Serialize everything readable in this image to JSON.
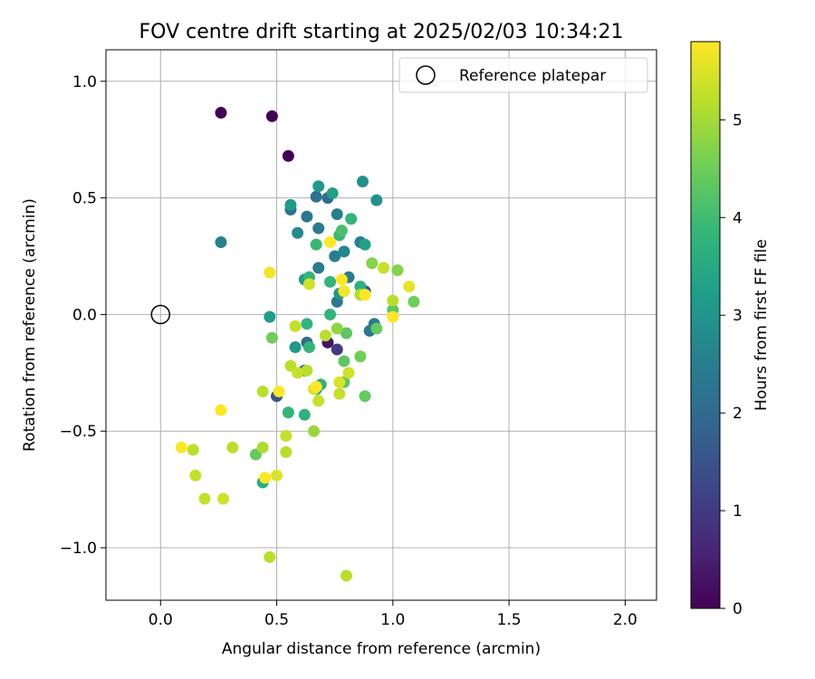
{
  "chart_data": {
    "type": "scatter",
    "title": "FOV centre drift starting at 2025/02/03 10:34:21",
    "xlabel": "Angular distance from reference (arcmin)",
    "ylabel": "Rotation from reference (arcmin)",
    "xlim": [
      -0.235,
      2.135
    ],
    "ylim": [
      -1.225,
      1.135
    ],
    "x_ticks": [
      0.0,
      0.5,
      1.0,
      1.5,
      2.0
    ],
    "x_tick_labels": [
      "0.0",
      "0.5",
      "1.0",
      "1.5",
      "2.0"
    ],
    "y_ticks": [
      -1.0,
      -0.5,
      0.0,
      0.5,
      1.0
    ],
    "y_tick_labels": [
      "−1.0",
      "−0.5",
      "0.0",
      "0.5",
      "1.0"
    ],
    "grid": true,
    "legend": {
      "position": "top-right",
      "entries": [
        "Reference platepar"
      ]
    },
    "reference": {
      "x": 0.0,
      "y": 0.0
    },
    "colorbar": {
      "label": "Hours from first FF file",
      "range": [
        0,
        5.8
      ],
      "ticks": [
        0,
        1,
        2,
        3,
        4,
        5
      ],
      "tick_labels": [
        "0",
        "1",
        "2",
        "3",
        "4",
        "5"
      ],
      "colormap": "viridis",
      "colors": [
        "#440154",
        "#482878",
        "#3e4989",
        "#31688e",
        "#26828e",
        "#1f9e89",
        "#35b779",
        "#6ece58",
        "#b5de2b",
        "#fde725"
      ]
    },
    "points": [
      {
        "x": 0.26,
        "y": 0.865,
        "h": 0.0
      },
      {
        "x": 0.48,
        "y": 0.85,
        "h": 0.0
      },
      {
        "x": 0.55,
        "y": 0.68,
        "h": 0.0
      },
      {
        "x": 0.72,
        "y": -0.12,
        "h": 0.3
      },
      {
        "x": 0.76,
        "y": -0.15,
        "h": 1.0
      },
      {
        "x": 0.5,
        "y": -0.35,
        "h": 1.5
      },
      {
        "x": 0.62,
        "y": -0.24,
        "h": 1.6
      },
      {
        "x": 0.63,
        "y": -0.12,
        "h": 2.0
      },
      {
        "x": 0.88,
        "y": 0.1,
        "h": 1.5
      },
      {
        "x": 0.72,
        "y": 0.5,
        "h": 2.0
      },
      {
        "x": 0.67,
        "y": 0.505,
        "h": 2.2
      },
      {
        "x": 0.56,
        "y": 0.45,
        "h": 2.2
      },
      {
        "x": 0.63,
        "y": 0.42,
        "h": 2.3
      },
      {
        "x": 0.76,
        "y": 0.43,
        "h": 2.5
      },
      {
        "x": 0.68,
        "y": 0.37,
        "h": 2.4
      },
      {
        "x": 0.59,
        "y": 0.35,
        "h": 2.8
      },
      {
        "x": 0.26,
        "y": 0.31,
        "h": 2.6
      },
      {
        "x": 0.86,
        "y": 0.31,
        "h": 2.5
      },
      {
        "x": 0.79,
        "y": 0.27,
        "h": 2.7
      },
      {
        "x": 0.75,
        "y": 0.25,
        "h": 2.5
      },
      {
        "x": 0.68,
        "y": 0.2,
        "h": 2.4
      },
      {
        "x": 0.81,
        "y": 0.16,
        "h": 2.4
      },
      {
        "x": 0.76,
        "y": 0.055,
        "h": 2.3
      },
      {
        "x": 0.9,
        "y": -0.07,
        "h": 2.3
      },
      {
        "x": 0.92,
        "y": -0.04,
        "h": 2.4
      },
      {
        "x": 0.87,
        "y": 0.57,
        "h": 2.9
      },
      {
        "x": 0.93,
        "y": 0.49,
        "h": 2.9
      },
      {
        "x": 0.68,
        "y": 0.55,
        "h": 3.1
      },
      {
        "x": 0.74,
        "y": 0.52,
        "h": 3.3
      },
      {
        "x": 0.56,
        "y": 0.47,
        "h": 3.2
      },
      {
        "x": 0.88,
        "y": 0.3,
        "h": 3.3
      },
      {
        "x": 0.62,
        "y": 0.15,
        "h": 3.2
      },
      {
        "x": 0.77,
        "y": 0.09,
        "h": 3.1
      },
      {
        "x": 0.47,
        "y": -0.01,
        "h": 3.2
      },
      {
        "x": 0.58,
        "y": -0.14,
        "h": 3.1
      },
      {
        "x": 0.67,
        "y": -0.32,
        "h": 3.2
      },
      {
        "x": 0.86,
        "y": 0.12,
        "h": 3.7
      },
      {
        "x": 0.77,
        "y": 0.34,
        "h": 3.9
      },
      {
        "x": 0.82,
        "y": 0.41,
        "h": 3.8
      },
      {
        "x": 0.78,
        "y": 0.36,
        "h": 4.1
      },
      {
        "x": 0.67,
        "y": 0.3,
        "h": 3.9
      },
      {
        "x": 0.64,
        "y": 0.16,
        "h": 3.8
      },
      {
        "x": 0.73,
        "y": 0.14,
        "h": 3.8
      },
      {
        "x": 0.73,
        "y": 0.0,
        "h": 3.8
      },
      {
        "x": 0.63,
        "y": -0.04,
        "h": 3.8
      },
      {
        "x": 0.64,
        "y": -0.14,
        "h": 3.8
      },
      {
        "x": 0.69,
        "y": -0.3,
        "h": 3.8
      },
      {
        "x": 0.62,
        "y": -0.43,
        "h": 3.7
      },
      {
        "x": 0.55,
        "y": -0.42,
        "h": 3.8
      },
      {
        "x": 0.44,
        "y": -0.72,
        "h": 3.6
      },
      {
        "x": 0.79,
        "y": -0.2,
        "h": 4.3
      },
      {
        "x": 0.79,
        "y": -0.29,
        "h": 4.3
      },
      {
        "x": 0.8,
        "y": -0.08,
        "h": 4.3
      },
      {
        "x": 0.88,
        "y": -0.35,
        "h": 4.4
      },
      {
        "x": 0.86,
        "y": -0.18,
        "h": 4.5
      },
      {
        "x": 0.93,
        "y": -0.06,
        "h": 4.4
      },
      {
        "x": 1.0,
        "y": 0.02,
        "h": 4.3
      },
      {
        "x": 1.09,
        "y": 0.055,
        "h": 4.5
      },
      {
        "x": 1.02,
        "y": 0.19,
        "h": 4.7
      },
      {
        "x": 0.91,
        "y": 0.22,
        "h": 4.7
      },
      {
        "x": 0.48,
        "y": -0.1,
        "h": 4.5
      },
      {
        "x": 0.76,
        "y": -0.06,
        "h": 4.8
      },
      {
        "x": 0.41,
        "y": -0.6,
        "h": 4.4
      },
      {
        "x": 0.66,
        "y": -0.5,
        "h": 4.9
      },
      {
        "x": 0.96,
        "y": 0.2,
        "h": 5.3
      },
      {
        "x": 1.0,
        "y": 0.06,
        "h": 5.2
      },
      {
        "x": 0.86,
        "y": 0.085,
        "h": 5.1
      },
      {
        "x": 0.64,
        "y": 0.13,
        "h": 5.4
      },
      {
        "x": 0.58,
        "y": -0.05,
        "h": 5.3
      },
      {
        "x": 0.71,
        "y": -0.09,
        "h": 5.2
      },
      {
        "x": 0.56,
        "y": -0.22,
        "h": 5.2
      },
      {
        "x": 0.59,
        "y": -0.25,
        "h": 5.3
      },
      {
        "x": 0.63,
        "y": -0.24,
        "h": 5.2
      },
      {
        "x": 0.81,
        "y": -0.25,
        "h": 5.4
      },
      {
        "x": 0.77,
        "y": -0.29,
        "h": 5.5
      },
      {
        "x": 0.77,
        "y": -0.34,
        "h": 5.3
      },
      {
        "x": 0.66,
        "y": -0.32,
        "h": 5.5
      },
      {
        "x": 0.68,
        "y": -0.37,
        "h": 5.3
      },
      {
        "x": 0.44,
        "y": -0.33,
        "h": 5.2
      },
      {
        "x": 0.54,
        "y": -0.52,
        "h": 5.3
      },
      {
        "x": 0.54,
        "y": -0.59,
        "h": 5.2
      },
      {
        "x": 0.44,
        "y": -0.57,
        "h": 5.1
      },
      {
        "x": 0.31,
        "y": -0.57,
        "h": 5.2
      },
      {
        "x": 0.14,
        "y": -0.58,
        "h": 5.2
      },
      {
        "x": 0.15,
        "y": -0.69,
        "h": 5.3
      },
      {
        "x": 0.19,
        "y": -0.79,
        "h": 5.3
      },
      {
        "x": 0.27,
        "y": -0.79,
        "h": 5.4
      },
      {
        "x": 0.5,
        "y": -0.69,
        "h": 5.5
      },
      {
        "x": 0.47,
        "y": -1.04,
        "h": 5.2
      },
      {
        "x": 0.8,
        "y": -1.12,
        "h": 5.2
      },
      {
        "x": 1.07,
        "y": 0.12,
        "h": 5.6
      },
      {
        "x": 0.73,
        "y": 0.31,
        "h": 5.8
      },
      {
        "x": 0.78,
        "y": 0.15,
        "h": 5.8
      },
      {
        "x": 0.79,
        "y": 0.1,
        "h": 5.7
      },
      {
        "x": 0.88,
        "y": 0.085,
        "h": 5.8
      },
      {
        "x": 1.0,
        "y": -0.01,
        "h": 5.8
      },
      {
        "x": 0.47,
        "y": 0.18,
        "h": 5.7
      },
      {
        "x": 0.51,
        "y": -0.33,
        "h": 5.8
      },
      {
        "x": 0.67,
        "y": -0.31,
        "h": 5.8
      },
      {
        "x": 0.45,
        "y": -0.7,
        "h": 5.8
      },
      {
        "x": 0.26,
        "y": -0.41,
        "h": 5.8
      },
      {
        "x": 0.09,
        "y": -0.57,
        "h": 5.8
      }
    ]
  }
}
